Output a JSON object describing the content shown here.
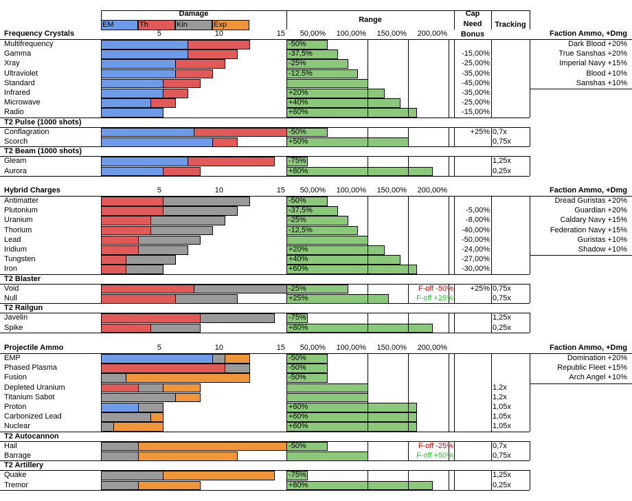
{
  "colors": {
    "em": "#6e9be8",
    "thermal": "#e05a5a",
    "kinetic": "#9a9a9a",
    "explosive": "#f0963a",
    "range": "#8cc87a",
    "negative": "#e00000",
    "positive": "#22cc22"
  },
  "header": {
    "damage": "Damage",
    "range": "Range",
    "cap_need": [
      "Cap",
      "Need",
      "Bonus"
    ],
    "tracking": "Tracking",
    "legend": [
      {
        "label": "EM",
        "type": "em"
      },
      {
        "label": "Th",
        "type": "th"
      },
      {
        "label": "Kin",
        "type": "kin"
      },
      {
        "label": "Exp",
        "type": "exp"
      }
    ],
    "damage_ticks": [
      "5",
      "10",
      "15"
    ],
    "range_ticks": [
      "50,00%",
      "100,00%",
      "150,00%",
      "200,00%"
    ]
  },
  "sections": [
    {
      "title": "Frequency Crystals",
      "faction_header": "Faction Ammo, +Dmg",
      "faction": [
        "Dark Blood +20%",
        "True Sanshas +20%",
        "Imperial Navy +15%",
        "Blood +10%",
        "Sanshas +10%"
      ],
      "groups": [
        {
          "title": "",
          "rows": [
            {
              "name": "Multifrequency",
              "dmg": [
                {
                  "t": "em",
                  "v": 7
                },
                {
                  "t": "th",
                  "v": 5
                }
              ],
              "range_pct": 50,
              "range_label": "-50%",
              "cap": "",
              "track": ""
            },
            {
              "name": "Gamma",
              "dmg": [
                {
                  "t": "em",
                  "v": 7
                },
                {
                  "t": "th",
                  "v": 4
                }
              ],
              "range_pct": 62.5,
              "range_label": "-37,5%",
              "cap": "-15,00%",
              "track": ""
            },
            {
              "name": "Xray",
              "dmg": [
                {
                  "t": "em",
                  "v": 6
                },
                {
                  "t": "th",
                  "v": 4
                }
              ],
              "range_pct": 75,
              "range_label": "-25%",
              "cap": "-25,00%",
              "track": ""
            },
            {
              "name": "Ultraviolet",
              "dmg": [
                {
                  "t": "em",
                  "v": 6
                },
                {
                  "t": "th",
                  "v": 3
                }
              ],
              "range_pct": 87.5,
              "range_label": "-12,5%",
              "cap": "-35,00%",
              "track": ""
            },
            {
              "name": "Standard",
              "dmg": [
                {
                  "t": "em",
                  "v": 5
                },
                {
                  "t": "th",
                  "v": 3
                }
              ],
              "range_pct": 100,
              "range_label": "",
              "cap": "-45,00%",
              "track": ""
            },
            {
              "name": "Infrared",
              "dmg": [
                {
                  "t": "em",
                  "v": 5
                },
                {
                  "t": "th",
                  "v": 2
                }
              ],
              "range_pct": 120,
              "range_label": "+20%",
              "cap": "-35,00%",
              "track": ""
            },
            {
              "name": "Microwave",
              "dmg": [
                {
                  "t": "em",
                  "v": 4
                },
                {
                  "t": "th",
                  "v": 2
                }
              ],
              "range_pct": 140,
              "range_label": "+40%",
              "cap": "-25,00%",
              "track": ""
            },
            {
              "name": "Radio",
              "dmg": [
                {
                  "t": "em",
                  "v": 5
                }
              ],
              "range_pct": 160,
              "range_label": "+60%",
              "cap": "-15,00%",
              "track": ""
            }
          ]
        },
        {
          "title": "T2 Pulse (1000 shots)",
          "rows": [
            {
              "name": "Conflagration",
              "dmg": [
                {
                  "t": "em",
                  "v": 7.5
                },
                {
                  "t": "th",
                  "v": 7.5
                }
              ],
              "range_pct": 50,
              "range_label": "-50%",
              "cap": "+25%",
              "track": "0,7x"
            },
            {
              "name": "Scorch",
              "dmg": [
                {
                  "t": "em",
                  "v": 9
                },
                {
                  "t": "th",
                  "v": 2
                }
              ],
              "range_pct": 150,
              "range_label": "+50%",
              "cap": "",
              "track": "0,75x"
            }
          ]
        },
        {
          "title": "T2 Beam (1000 shots)",
          "rows": [
            {
              "name": "Gleam",
              "dmg": [
                {
                  "t": "em",
                  "v": 7
                },
                {
                  "t": "th",
                  "v": 7
                }
              ],
              "range_pct": 25,
              "range_label": "-75%",
              "cap": "",
              "track": "1,25x"
            },
            {
              "name": "Aurora",
              "dmg": [
                {
                  "t": "em",
                  "v": 5
                },
                {
                  "t": "th",
                  "v": 3
                }
              ],
              "range_pct": 180,
              "range_label": "+80%",
              "cap": "",
              "track": "0,25x"
            }
          ]
        }
      ]
    },
    {
      "title": "Hybrid Charges",
      "faction_header": "Faction Ammo, +Dmg",
      "faction": [
        "Dread Guristas +20%",
        "Guardian +20%",
        "Caldary Navy +15%",
        "Federation Navy +15%",
        "Guristas +10%",
        "Shadow +10%"
      ],
      "groups": [
        {
          "title": "",
          "rows": [
            {
              "name": "Antimatter",
              "dmg": [
                {
                  "t": "th",
                  "v": 5
                },
                {
                  "t": "kin",
                  "v": 7
                }
              ],
              "range_pct": 50,
              "range_label": "-50%",
              "cap": "",
              "track": ""
            },
            {
              "name": "Plutonium",
              "dmg": [
                {
                  "t": "th",
                  "v": 5
                },
                {
                  "t": "kin",
                  "v": 6
                }
              ],
              "range_pct": 62.5,
              "range_label": "-37,5%",
              "cap": "-5,00%",
              "track": ""
            },
            {
              "name": "Uranium",
              "dmg": [
                {
                  "t": "th",
                  "v": 4
                },
                {
                  "t": "kin",
                  "v": 6
                }
              ],
              "range_pct": 75,
              "range_label": "-25%",
              "cap": "-8,00%",
              "track": ""
            },
            {
              "name": "Thorium",
              "dmg": [
                {
                  "t": "th",
                  "v": 4
                },
                {
                  "t": "kin",
                  "v": 5
                }
              ],
              "range_pct": 87.5,
              "range_label": "-12,5%",
              "cap": "-40,00%",
              "track": ""
            },
            {
              "name": "Lead",
              "dmg": [
                {
                  "t": "th",
                  "v": 3
                },
                {
                  "t": "kin",
                  "v": 5
                }
              ],
              "range_pct": 100,
              "range_label": "",
              "cap": "-50,00%",
              "track": ""
            },
            {
              "name": "Iridium",
              "dmg": [
                {
                  "t": "th",
                  "v": 3
                },
                {
                  "t": "kin",
                  "v": 4
                }
              ],
              "range_pct": 120,
              "range_label": "+20%",
              "cap": "-24,00%",
              "track": ""
            },
            {
              "name": "Tungsten",
              "dmg": [
                {
                  "t": "th",
                  "v": 2
                },
                {
                  "t": "kin",
                  "v": 4
                }
              ],
              "range_pct": 140,
              "range_label": "+40%",
              "cap": "-27,00%",
              "track": ""
            },
            {
              "name": "Iron",
              "dmg": [
                {
                  "t": "th",
                  "v": 2
                },
                {
                  "t": "kin",
                  "v": 3
                }
              ],
              "range_pct": 160,
              "range_label": "+60%",
              "cap": "-30,00%",
              "track": ""
            }
          ]
        },
        {
          "title": "T2 Blaster",
          "rows": [
            {
              "name": "Void",
              "dmg": [
                {
                  "t": "th",
                  "v": 7.5
                },
                {
                  "t": "kin",
                  "v": 7.5
                }
              ],
              "range_pct": 75,
              "range_label": "-25%",
              "note": "F-off -50%",
              "note_color": "red",
              "cap": "+25%",
              "track": "0,75x"
            },
            {
              "name": "Null",
              "dmg": [
                {
                  "t": "th",
                  "v": 6
                },
                {
                  "t": "kin",
                  "v": 5
                }
              ],
              "range_pct": 125,
              "range_label": "+25%",
              "note": "F-off +25%",
              "note_color": "grn",
              "cap": "",
              "track": "0,75x"
            }
          ]
        },
        {
          "title": "T2 Railgun",
          "rows": [
            {
              "name": "Javelin",
              "dmg": [
                {
                  "t": "th",
                  "v": 8
                },
                {
                  "t": "kin",
                  "v": 6
                }
              ],
              "range_pct": 25,
              "range_label": "-75%",
              "cap": "",
              "track": "1,25x"
            },
            {
              "name": "Spike",
              "dmg": [
                {
                  "t": "th",
                  "v": 4
                },
                {
                  "t": "kin",
                  "v": 4
                }
              ],
              "range_pct": 180,
              "range_label": "+80%",
              "cap": "",
              "track": "0,25x"
            }
          ]
        }
      ]
    },
    {
      "title": "Projectile Ammo",
      "faction_header": "Faction Ammo, +Dmg",
      "faction": [
        "Domination +20%",
        "Republic Fleet +15%",
        "Arch Angel +10%"
      ],
      "groups": [
        {
          "title": "",
          "rows": [
            {
              "name": "EMP",
              "dmg": [
                {
                  "t": "em",
                  "v": 9
                },
                {
                  "t": "kin",
                  "v": 1
                },
                {
                  "t": "exp",
                  "v": 2
                }
              ],
              "range_pct": 50,
              "range_label": "-50%",
              "cap": "",
              "track": ""
            },
            {
              "name": "Phased Plasma",
              "dmg": [
                {
                  "t": "th",
                  "v": 10
                },
                {
                  "t": "kin",
                  "v": 2
                }
              ],
              "range_pct": 50,
              "range_label": "-50%",
              "cap": "",
              "track": ""
            },
            {
              "name": "Fusion",
              "dmg": [
                {
                  "t": "kin",
                  "v": 2
                },
                {
                  "t": "exp",
                  "v": 10
                }
              ],
              "range_pct": 50,
              "range_label": "-50%",
              "cap": "",
              "track": ""
            },
            {
              "name": "Depleted Uranium",
              "dmg": [
                {
                  "t": "th",
                  "v": 3
                },
                {
                  "t": "kin",
                  "v": 2
                },
                {
                  "t": "exp",
                  "v": 3
                }
              ],
              "range_pct": 100,
              "range_label": "",
              "cap": "",
              "track": "1,2x"
            },
            {
              "name": "Titanium Sabot",
              "dmg": [
                {
                  "t": "kin",
                  "v": 6
                },
                {
                  "t": "exp",
                  "v": 2
                }
              ],
              "range_pct": 100,
              "range_label": "",
              "cap": "",
              "track": "1,2x"
            },
            {
              "name": "Proton",
              "dmg": [
                {
                  "t": "em",
                  "v": 3
                },
                {
                  "t": "kin",
                  "v": 2
                }
              ],
              "range_pct": 160,
              "range_label": "+60%",
              "cap": "",
              "track": "1,05x"
            },
            {
              "name": "Carbonized Lead",
              "dmg": [
                {
                  "t": "kin",
                  "v": 4
                },
                {
                  "t": "exp",
                  "v": 1
                }
              ],
              "range_pct": 160,
              "range_label": "+60%",
              "cap": "",
              "track": "1,05x"
            },
            {
              "name": "Nuclear",
              "dmg": [
                {
                  "t": "kin",
                  "v": 1
                },
                {
                  "t": "exp",
                  "v": 4
                }
              ],
              "range_pct": 160,
              "range_label": "+60%",
              "cap": "",
              "track": "1,05x"
            }
          ]
        },
        {
          "title": "T2 Autocannon",
          "rows": [
            {
              "name": "Hail",
              "dmg": [
                {
                  "t": "kin",
                  "v": 3
                },
                {
                  "t": "exp",
                  "v": 12
                }
              ],
              "range_pct": 50,
              "range_label": "-50%",
              "note": "F-off -25%",
              "note_color": "red",
              "cap": "",
              "track": "0,7x"
            },
            {
              "name": "Barrage",
              "dmg": [
                {
                  "t": "kin",
                  "v": 3
                },
                {
                  "t": "exp",
                  "v": 8
                }
              ],
              "range_pct": 100,
              "range_label": "",
              "note": "F-off +50%",
              "note_color": "grn",
              "cap": "",
              "track": "0,75x"
            }
          ]
        },
        {
          "title": "T2 Artillery",
          "rows": [
            {
              "name": "Quake",
              "dmg": [
                {
                  "t": "kin",
                  "v": 5
                },
                {
                  "t": "exp",
                  "v": 9
                }
              ],
              "range_pct": 25,
              "range_label": "-75%",
              "cap": "",
              "track": "1,25x"
            },
            {
              "name": "Tremor",
              "dmg": [
                {
                  "t": "kin",
                  "v": 3
                },
                {
                  "t": "exp",
                  "v": 5
                }
              ],
              "range_pct": 180,
              "range_label": "+80%",
              "cap": "",
              "track": "0,25x"
            }
          ]
        }
      ]
    }
  ]
}
